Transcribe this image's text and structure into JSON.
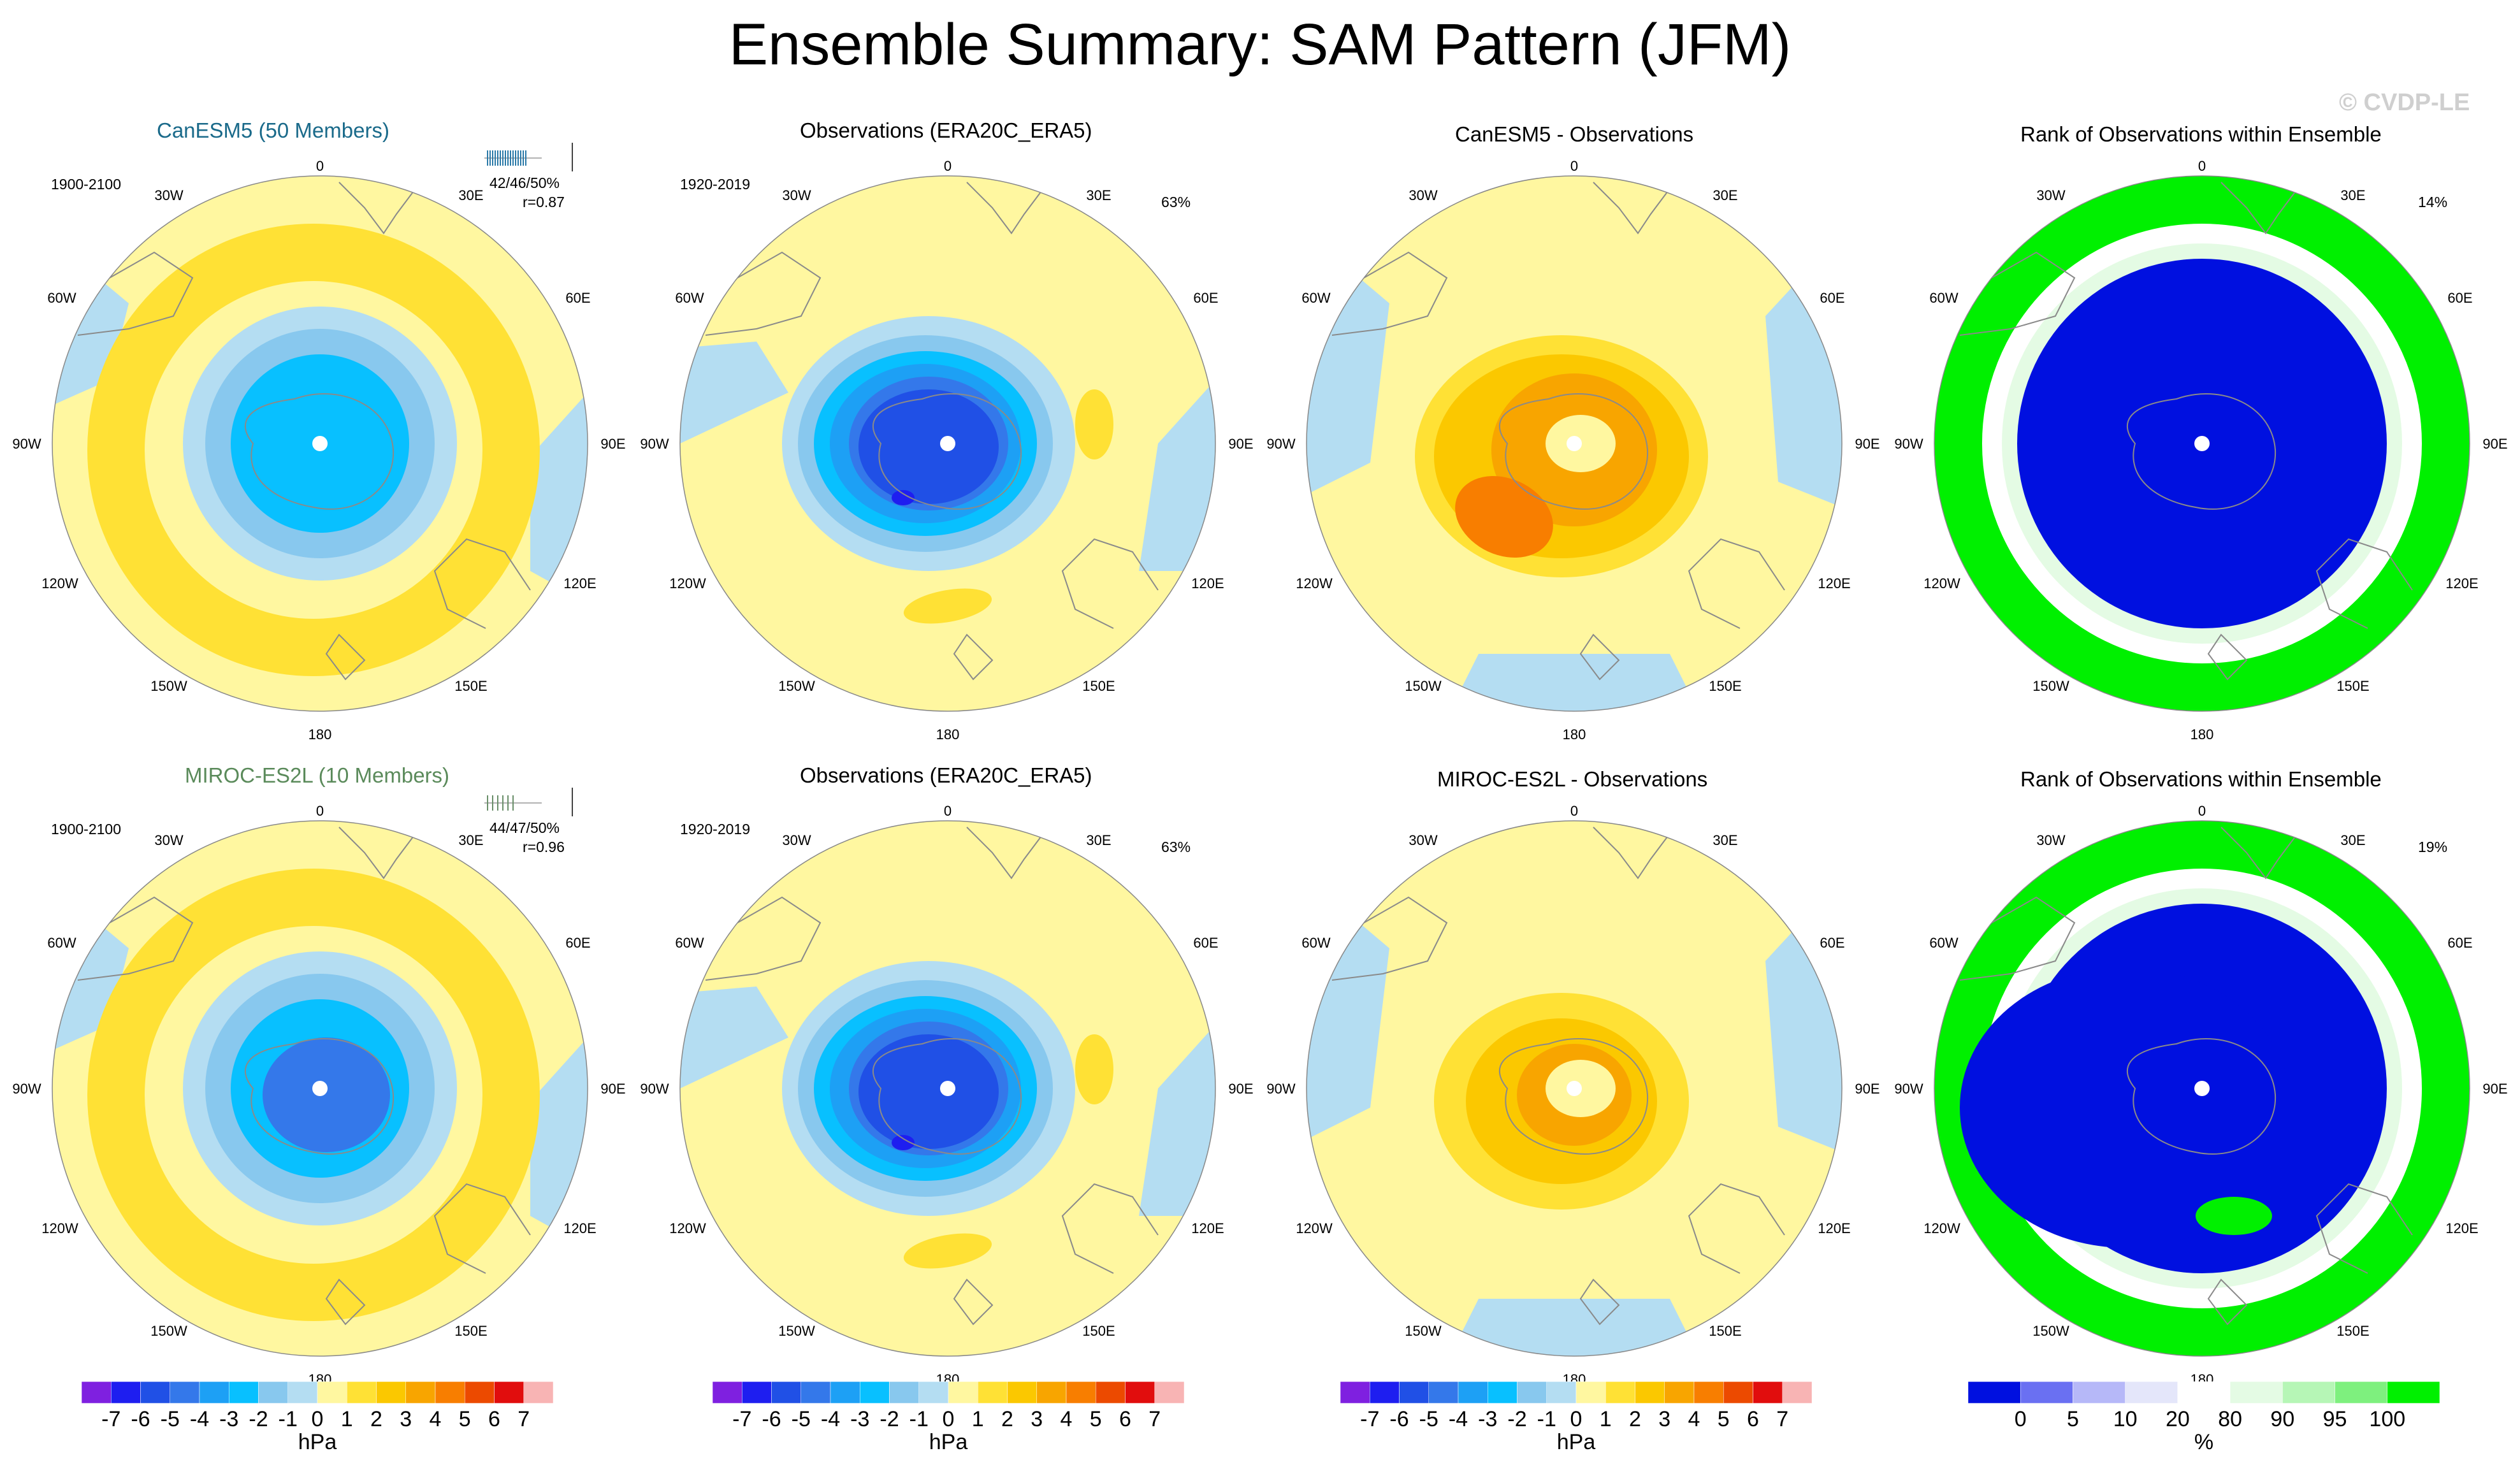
{
  "title": "Ensemble Summary: SAM Pattern (JFM)",
  "watermark": "© CVDP-LE",
  "colors": {
    "diverging": [
      "#7f20e0",
      "#1e1ef0",
      "#2050e6",
      "#3478ea",
      "#1da0f5",
      "#08c0ff",
      "#88c8ee",
      "#b4ddf2",
      "#fff7a0",
      "#ffe135",
      "#fbc800",
      "#f8a500",
      "#f87e00",
      "#ec4a00",
      "#e10d0d",
      "#c40e0e",
      "#f8b4b4"
    ],
    "rank": [
      "#0010e0",
      "#6a70f2",
      "#b6b8f8",
      "#e4e6fa",
      "#ffffff",
      "#e4fbe4",
      "#b6f6b6",
      "#7ef07e",
      "#00f000"
    ],
    "land_outline": "#8a8a8a"
  },
  "map_labels": {
    "top": "0",
    "upper_left": "30W",
    "upper_right": "30E",
    "mid_upper_left": "60W",
    "mid_upper_right": "60E",
    "left": "90W",
    "right": "90E",
    "mid_lower_left": "120W",
    "mid_lower_right": "120E",
    "lower_left": "150W",
    "lower_right": "150E",
    "bottom": "180"
  },
  "rows": [
    {
      "ensemble": {
        "title": "CanESM5 (50 Members)",
        "title_color": "#1a6a8a",
        "period": "1900-2100",
        "stats": "42/46/50%",
        "corr": "r=0.87"
      },
      "observations": {
        "title": "Observations (ERA20C_ERA5)",
        "period": "1920-2019",
        "percent": "63%"
      },
      "difference": {
        "title": "CanESM5 - Observations"
      },
      "rank": {
        "title": "Rank of Observations within Ensemble",
        "percent": "14%"
      }
    },
    {
      "ensemble": {
        "title": "MIROC-ES2L (10 Members)",
        "title_color": "#5a8a5a",
        "period": "1900-2100",
        "stats": "44/47/50%",
        "corr": "r=0.96"
      },
      "observations": {
        "title": "Observations (ERA20C_ERA5)",
        "period": "1920-2019",
        "percent": "63%"
      },
      "difference": {
        "title": "MIROC-ES2L - Observations"
      },
      "rank": {
        "title": "Rank of Observations within Ensemble",
        "percent": "19%"
      }
    }
  ],
  "chart_data": {
    "type": "polar-contour-maps",
    "projection": "South Polar Stereographic",
    "variable": "SAM pattern sea level pressure",
    "season": "JFM",
    "panel_kind": [
      {
        "row": 1,
        "col": 1,
        "kind": "ensemble-mean",
        "center_min_hPa": -4,
        "ring_max_hPa": 2
      },
      {
        "row": 1,
        "col": 2,
        "kind": "observations",
        "center_min_hPa": -6,
        "ring_max_hPa": 1
      },
      {
        "row": 1,
        "col": 3,
        "kind": "difference",
        "center_max_hPa": 3
      },
      {
        "row": 1,
        "col": 4,
        "kind": "rank",
        "dominant_rank": "0-5"
      },
      {
        "row": 2,
        "col": 1,
        "kind": "ensemble-mean",
        "center_min_hPa": -4,
        "ring_max_hPa": 1
      },
      {
        "row": 2,
        "col": 2,
        "kind": "observations",
        "center_min_hPa": -6,
        "ring_max_hPa": 1
      },
      {
        "row": 2,
        "col": 3,
        "kind": "difference",
        "center_max_hPa": 2
      },
      {
        "row": 2,
        "col": 4,
        "kind": "rank",
        "dominant_rank": "0-5"
      }
    ],
    "colorbar_hpa": {
      "ticks": [
        "-7",
        "-6",
        "-5",
        "-4",
        "-3",
        "-2",
        "-1",
        "0",
        "1",
        "2",
        "3",
        "4",
        "5",
        "6",
        "7"
      ],
      "unit": "hPa"
    },
    "colorbar_rank": {
      "ticks": [
        "0",
        "5",
        "10",
        "20",
        "80",
        "90",
        "95",
        "100"
      ],
      "unit": "%"
    }
  }
}
